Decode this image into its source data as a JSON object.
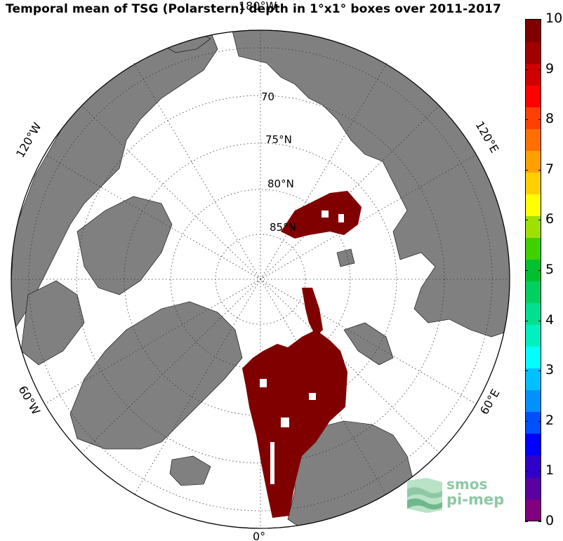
{
  "title": "Temporal mean of TSG (Polarstern) depth in 1°x1° boxes over 2011-2017",
  "map": {
    "projection": "north-polar-stereographic",
    "ocean_color": "#ffffff",
    "land_color": "#808080",
    "data_color": "#800000",
    "graticule_style": "dotted",
    "latitude_labels": [
      "70",
      "75°N",
      "80°N",
      "85°N"
    ],
    "longitude_labels": {
      "top": "180°W",
      "upper_left": "120°W",
      "upper_right": "120°E",
      "lower_left": "60°W",
      "lower_right": "60°E",
      "bottom": "0°"
    }
  },
  "colorbar": {
    "min": 0,
    "max": 10,
    "tick_labels": [
      "10",
      "9",
      "8",
      "7",
      "6",
      "5",
      "4",
      "3",
      "2",
      "1",
      "0"
    ],
    "colors": [
      "#800080",
      "#5a00a0",
      "#3000c8",
      "#0000ff",
      "#0050ff",
      "#0090ff",
      "#00c0ff",
      "#00ffff",
      "#00f0c0",
      "#00e090",
      "#00d060",
      "#00c030",
      "#40d000",
      "#a0e000",
      "#ffff00",
      "#ffd000",
      "#ffa000",
      "#ff7000",
      "#ff4000",
      "#ff0000",
      "#d00000",
      "#a00000",
      "#800000"
    ]
  },
  "logo": {
    "line1": "smos",
    "line2": "pi-mep"
  }
}
